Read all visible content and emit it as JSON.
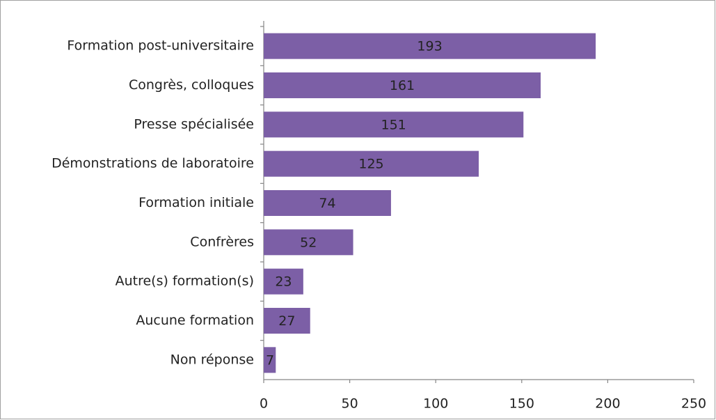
{
  "chart_data": {
    "type": "bar",
    "orientation": "horizontal",
    "categories": [
      "Formation post-universitaire",
      "Congrès, colloques",
      "Presse spécialisée",
      "Démonstrations de laboratoire",
      "Formation initiale",
      "Confrères",
      "Autre(s) formation(s)",
      "Aucune formation",
      "Non réponse"
    ],
    "values": [
      193,
      161,
      151,
      125,
      74,
      52,
      23,
      27,
      7
    ],
    "color": "#7c5fa6",
    "xlim": [
      0,
      250
    ],
    "xticks": [
      0,
      50,
      100,
      150,
      200,
      250
    ]
  }
}
